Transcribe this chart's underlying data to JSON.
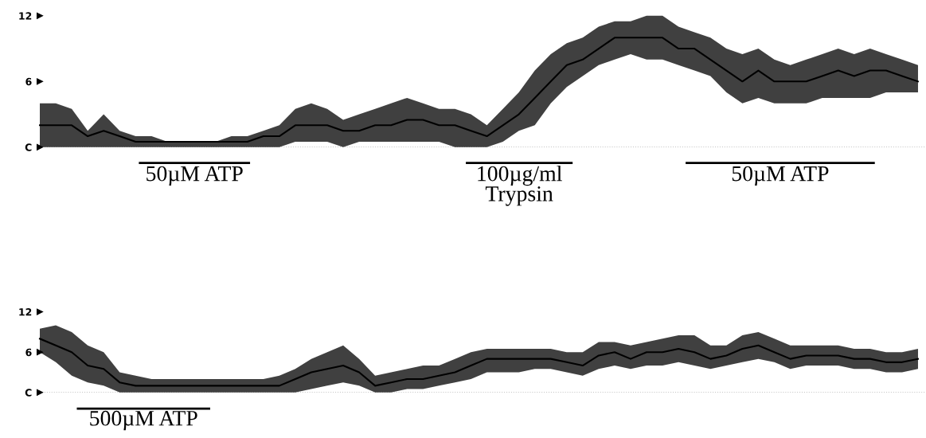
{
  "chart_data": [
    {
      "type": "line",
      "categories": [
        null,
        null,
        null,
        null,
        null,
        null,
        null,
        null,
        null,
        null,
        null,
        null,
        null,
        null,
        null,
        null,
        null,
        null,
        null,
        null,
        null,
        null,
        null,
        null,
        null,
        null,
        null,
        null,
        null,
        null,
        null,
        null,
        null,
        null,
        null,
        null,
        null,
        null,
        null,
        null,
        null,
        null,
        null,
        null,
        null,
        null,
        null,
        null,
        null,
        null,
        null,
        null,
        null,
        null,
        null,
        null
      ],
      "series": [
        {
          "color": "#000000",
          "values": [
            2,
            2,
            2,
            1,
            1.5,
            1,
            0.5,
            0.5,
            0.5,
            0.5,
            0.5,
            0.5,
            0.5,
            0.5,
            1,
            1,
            2,
            2,
            2,
            1.5,
            1.5,
            2,
            2,
            2.5,
            2.5,
            2,
            2,
            1.5,
            1,
            2,
            3,
            4.5,
            6,
            7.5,
            8,
            9,
            10,
            10,
            10,
            10,
            9,
            9,
            8,
            7,
            6,
            7,
            6,
            6,
            6,
            6.5,
            7,
            6.5,
            7,
            7,
            6.5,
            6
          ],
          "lower": [
            0,
            0,
            0,
            0,
            0,
            0,
            0,
            0,
            0,
            0,
            0,
            0,
            0,
            0,
            0,
            0,
            0.5,
            0.5,
            0.5,
            0,
            0.5,
            0.5,
            0.5,
            0.5,
            0.5,
            0.5,
            0,
            0,
            0,
            0.5,
            1.5,
            2,
            4,
            5.5,
            6.5,
            7.5,
            8,
            8.5,
            8,
            8,
            7.5,
            7,
            6.5,
            5,
            4,
            4.5,
            4,
            4,
            4,
            4.5,
            4.5,
            4.5,
            4.5,
            5,
            5,
            5
          ],
          "upper": [
            4,
            4,
            3.5,
            1.5,
            3,
            1.5,
            1,
            1,
            0.5,
            0.5,
            0.5,
            0.5,
            1,
            1,
            1.5,
            2,
            3.5,
            4,
            3.5,
            2.5,
            3,
            3.5,
            4,
            4.5,
            4,
            3.5,
            3.5,
            3,
            2,
            3.5,
            5,
            7,
            8.5,
            9.5,
            10,
            11,
            11.5,
            11.5,
            12,
            12,
            11,
            10.5,
            10,
            9,
            8.5,
            9,
            8,
            7.5,
            8,
            8.5,
            9,
            8.5,
            9,
            8.5,
            8,
            7.5
          ]
        }
      ],
      "ylim": [
        0,
        12
      ],
      "yticks": [
        {
          "value": 0,
          "label": "C"
        },
        6,
        12
      ],
      "tick_labels": "y",
      "ref_lines": [
        {
          "axis": "y",
          "value": 0,
          "color": "#999999",
          "line_style": "dotted"
        }
      ],
      "annotations": [
        "50µM ATP",
        "100µg/ml\nTrypsin",
        "50µM ATP"
      ]
    },
    {
      "type": "line",
      "categories": [
        null,
        null,
        null,
        null,
        null,
        null,
        null,
        null,
        null,
        null,
        null,
        null,
        null,
        null,
        null,
        null,
        null,
        null,
        null,
        null,
        null,
        null,
        null,
        null,
        null,
        null,
        null,
        null,
        null,
        null,
        null,
        null,
        null,
        null,
        null,
        null,
        null,
        null,
        null,
        null,
        null,
        null,
        null,
        null,
        null,
        null,
        null,
        null,
        null,
        null,
        null,
        null,
        null,
        null,
        null,
        null
      ],
      "series": [
        {
          "color": "#000000",
          "values": [
            8,
            7,
            6,
            4,
            3.5,
            1.5,
            1,
            1,
            1,
            1,
            1,
            1,
            1,
            1,
            1,
            1,
            2,
            3,
            3.5,
            4,
            3,
            1,
            1.5,
            2,
            2,
            2.5,
            3,
            4,
            5,
            5,
            5,
            5,
            5,
            4.5,
            4,
            5.5,
            6,
            5,
            6,
            6,
            6.5,
            6,
            5,
            5.5,
            6.5,
            7,
            6,
            5,
            5.5,
            5.5,
            5.5,
            5,
            5,
            4.5,
            4.5,
            5
          ],
          "lower": [
            6,
            4.5,
            2.5,
            1.5,
            1,
            0,
            0,
            0,
            0,
            0,
            0,
            0,
            0,
            0,
            0,
            0,
            0,
            0.5,
            1,
            1.5,
            1,
            0,
            0,
            0.5,
            0.5,
            1,
            1.5,
            2,
            3,
            3,
            3,
            3.5,
            3.5,
            3,
            2.5,
            3.5,
            4,
            3.5,
            4,
            4,
            4.5,
            4,
            3.5,
            4,
            4.5,
            5,
            4.5,
            3.5,
            4,
            4,
            4,
            3.5,
            3.5,
            3,
            3,
            3.5
          ],
          "upper": [
            9.5,
            10,
            9,
            7,
            6,
            3,
            2.5,
            2,
            2,
            2,
            2,
            2,
            2,
            2,
            2,
            2.5,
            3.5,
            5,
            6,
            7,
            5,
            2.5,
            3,
            3.5,
            4,
            4,
            5,
            6,
            6.5,
            6.5,
            6.5,
            6.5,
            6.5,
            6,
            6,
            7.5,
            7.5,
            7,
            7.5,
            8,
            8.5,
            8.5,
            7,
            7,
            8.5,
            9,
            8,
            7,
            7,
            7,
            7,
            6.5,
            6.5,
            6,
            6,
            6.5
          ]
        }
      ],
      "ylim": [
        0,
        12
      ],
      "yticks": [
        {
          "value": 0,
          "label": "C"
        },
        6,
        12
      ],
      "tick_labels": "y",
      "ref_lines": [
        {
          "axis": "y",
          "value": 0,
          "color": "#999999",
          "line_style": "dotted"
        }
      ],
      "annotations": [
        "500µM ATP"
      ]
    }
  ]
}
